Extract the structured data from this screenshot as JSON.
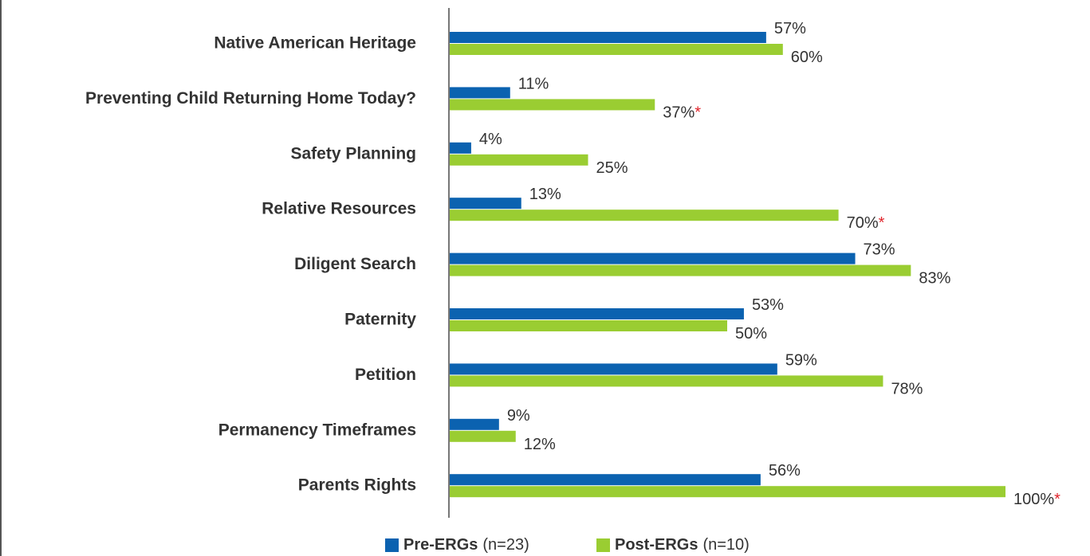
{
  "chart_data": {
    "type": "bar",
    "orientation": "horizontal",
    "categories": [
      "Native American Heritage",
      "Preventing Child Returning Home Today?",
      "Safety Planning",
      "Relative Resources",
      "Diligent Search",
      "Paternity",
      "Petition",
      "Permanency Timeframes",
      "Parents Rights"
    ],
    "xlim": [
      0,
      100
    ],
    "grid": false,
    "legend": "bottom",
    "series": [
      {
        "name": "Pre-ERGs",
        "legend_note": "(n=23)",
        "color": "#0b62b0",
        "values": [
          57,
          11,
          4,
          13,
          73,
          53,
          59,
          9,
          56
        ],
        "value_labels": [
          "57%",
          "11%",
          "4%",
          "13%",
          "73%",
          "53%",
          "59%",
          "9%",
          "56%"
        ]
      },
      {
        "name": "Post-ERGs",
        "legend_note": "(n=10)",
        "color": "#9acd32",
        "values": [
          60,
          37,
          25,
          70,
          83,
          50,
          78,
          12,
          100
        ],
        "value_labels": [
          "60%",
          "37%",
          "25%",
          "70%",
          "83%",
          "50%",
          "78%",
          "12%",
          "100%"
        ],
        "value_markers": [
          null,
          "*",
          null,
          "*",
          null,
          null,
          null,
          null,
          "*"
        ],
        "marker_color": "#e0242b"
      }
    ]
  }
}
